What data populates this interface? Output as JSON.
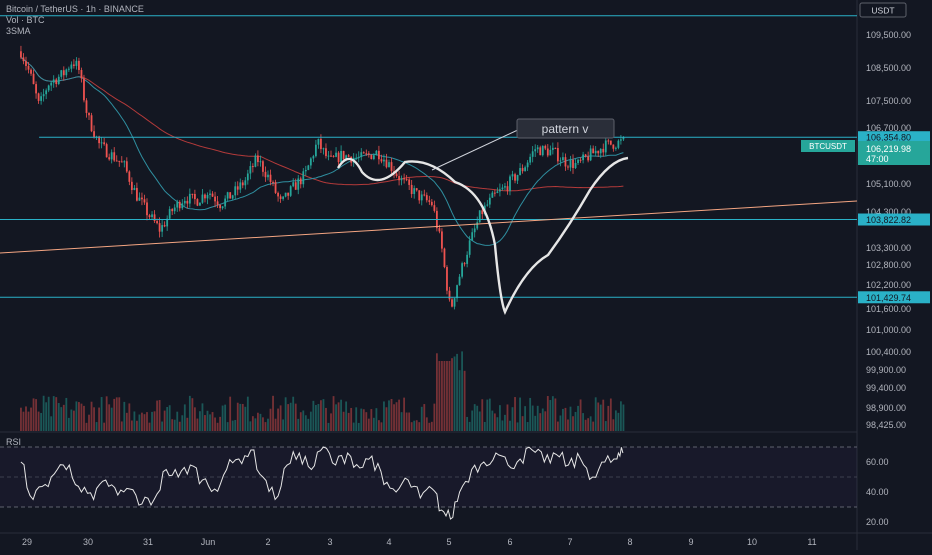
{
  "header": {
    "symbol_line": "Bitcoin / TetherUS · 1h · BINANCE",
    "volume_label": "Vol · BTC",
    "indicator_label": "3SMA",
    "rsi_label": "RSI"
  },
  "price_axis": {
    "currency": "USDT",
    "ticks": [
      "109,500.00",
      "108,500.00",
      "107,500.00",
      "106,700.00",
      "105,100.00",
      "104,300.00",
      "103,300.00",
      "102,800.00",
      "102,200.00",
      "101,600.00",
      "101,000.00",
      "100,400.00",
      "99,900.00",
      "99,400.00",
      "98,900.00",
      "98,425.00"
    ]
  },
  "time_axis": {
    "labels": [
      "29",
      "30",
      "31",
      "Jun",
      "2",
      "3",
      "4",
      "5",
      "6",
      "7",
      "8",
      "9",
      "10",
      "11"
    ]
  },
  "annotation": {
    "text": "pattern v"
  },
  "levels": {
    "top": "110,000",
    "upper": "106,354.80",
    "mid": "103,822.82",
    "low": "101,429.74"
  },
  "last_price": {
    "ticker": "BTCUSDT",
    "price": "106,219.98",
    "countdown": "47:00"
  },
  "rsi_axis": {
    "ticks": [
      "60.00",
      "40.00",
      "20.00"
    ]
  },
  "chart_data": [
    {
      "type": "candlestick",
      "title": "Bitcoin / TetherUS · 1h · BINANCE",
      "x_days": [
        "29",
        "30",
        "31",
        "Jun",
        "2",
        "3",
        "4",
        "5",
        "6",
        "7",
        "8",
        "9"
      ],
      "ylim": [
        98425,
        110200
      ],
      "close_path": [
        {
          "day": 28.9,
          "price": 109000
        },
        {
          "day": 29.05,
          "price": 108300
        },
        {
          "day": 29.2,
          "price": 107300
        },
        {
          "day": 29.35,
          "price": 108000
        },
        {
          "day": 29.6,
          "price": 108300
        },
        {
          "day": 29.75,
          "price": 108700
        },
        {
          "day": 29.85,
          "price": 108500
        },
        {
          "day": 30.0,
          "price": 107000
        },
        {
          "day": 30.2,
          "price": 106100
        },
        {
          "day": 30.4,
          "price": 105800
        },
        {
          "day": 30.6,
          "price": 105500
        },
        {
          "day": 30.8,
          "price": 104600
        },
        {
          "day": 31.0,
          "price": 104000
        },
        {
          "day": 31.2,
          "price": 103500
        },
        {
          "day": 31.4,
          "price": 104100
        },
        {
          "day": 31.6,
          "price": 104500
        },
        {
          "day": 31.8,
          "price": 104400
        },
        {
          "day": 32.0,
          "price": 104700
        },
        {
          "day": 32.2,
          "price": 104300
        },
        {
          "day": 32.4,
          "price": 104600
        },
        {
          "day": 32.6,
          "price": 105000
        },
        {
          "day": 32.8,
          "price": 105700
        },
        {
          "day": 33.0,
          "price": 105100
        },
        {
          "day": 33.2,
          "price": 104300
        },
        {
          "day": 33.4,
          "price": 104800
        },
        {
          "day": 33.6,
          "price": 105200
        },
        {
          "day": 33.8,
          "price": 106200
        },
        {
          "day": 34.0,
          "price": 105600
        },
        {
          "day": 34.2,
          "price": 105800
        },
        {
          "day": 34.5,
          "price": 105700
        },
        {
          "day": 34.8,
          "price": 105900
        },
        {
          "day": 35.0,
          "price": 105500
        },
        {
          "day": 35.2,
          "price": 105000
        },
        {
          "day": 35.5,
          "price": 104500
        },
        {
          "day": 35.7,
          "price": 104300
        },
        {
          "day": 35.85,
          "price": 103000
        },
        {
          "day": 36.0,
          "price": 101000
        },
        {
          "day": 36.1,
          "price": 101800
        },
        {
          "day": 36.3,
          "price": 103000
        },
        {
          "day": 36.5,
          "price": 104000
        },
        {
          "day": 36.7,
          "price": 104500
        },
        {
          "day": 36.9,
          "price": 104800
        },
        {
          "day": 37.2,
          "price": 105400
        },
        {
          "day": 37.4,
          "price": 106000
        },
        {
          "day": 37.7,
          "price": 105900
        },
        {
          "day": 37.9,
          "price": 105600
        },
        {
          "day": 38.1,
          "price": 105500
        },
        {
          "day": 38.3,
          "price": 105800
        },
        {
          "day": 38.55,
          "price": 106100
        },
        {
          "day": 38.85,
          "price": 106220
        }
      ],
      "horizontal_levels": [
        110000,
        106354.8,
        103822.82,
        101429.74
      ],
      "rsi": {
        "ylim": [
          20,
          80
        ],
        "band": [
          30,
          70
        ],
        "values": [
          {
            "day": 28.9,
            "v": 60
          },
          {
            "day": 29.1,
            "v": 35
          },
          {
            "day": 29.3,
            "v": 45
          },
          {
            "day": 29.5,
            "v": 55
          },
          {
            "day": 29.7,
            "v": 58
          },
          {
            "day": 29.9,
            "v": 40
          },
          {
            "day": 30.1,
            "v": 35
          },
          {
            "day": 30.3,
            "v": 48
          },
          {
            "day": 30.5,
            "v": 38
          },
          {
            "day": 30.7,
            "v": 42
          },
          {
            "day": 30.9,
            "v": 32
          },
          {
            "day": 31.1,
            "v": 35
          },
          {
            "day": 31.3,
            "v": 55
          },
          {
            "day": 31.5,
            "v": 50
          },
          {
            "day": 31.7,
            "v": 58
          },
          {
            "day": 31.9,
            "v": 48
          },
          {
            "day": 32.1,
            "v": 42
          },
          {
            "day": 32.3,
            "v": 55
          },
          {
            "day": 32.5,
            "v": 62
          },
          {
            "day": 32.7,
            "v": 68
          },
          {
            "day": 32.9,
            "v": 50
          },
          {
            "day": 33.1,
            "v": 35
          },
          {
            "day": 33.3,
            "v": 58
          },
          {
            "day": 33.5,
            "v": 66
          },
          {
            "day": 33.7,
            "v": 55
          },
          {
            "day": 33.9,
            "v": 70
          },
          {
            "day": 34.1,
            "v": 58
          },
          {
            "day": 34.3,
            "v": 66
          },
          {
            "day": 34.5,
            "v": 56
          },
          {
            "day": 34.7,
            "v": 64
          },
          {
            "day": 34.9,
            "v": 45
          },
          {
            "day": 35.1,
            "v": 40
          },
          {
            "day": 35.3,
            "v": 48
          },
          {
            "day": 35.5,
            "v": 36
          },
          {
            "day": 35.7,
            "v": 42
          },
          {
            "day": 35.85,
            "v": 28
          },
          {
            "day": 36.0,
            "v": 22
          },
          {
            "day": 36.15,
            "v": 40
          },
          {
            "day": 36.35,
            "v": 55
          },
          {
            "day": 36.55,
            "v": 60
          },
          {
            "day": 36.75,
            "v": 66
          },
          {
            "day": 36.95,
            "v": 58
          },
          {
            "day": 37.15,
            "v": 62
          },
          {
            "day": 37.35,
            "v": 68
          },
          {
            "day": 37.55,
            "v": 60
          },
          {
            "day": 37.75,
            "v": 65
          },
          {
            "day": 37.95,
            "v": 58
          },
          {
            "day": 38.15,
            "v": 62
          },
          {
            "day": 38.35,
            "v": 50
          },
          {
            "day": 38.55,
            "v": 60
          },
          {
            "day": 38.75,
            "v": 62
          },
          {
            "day": 38.85,
            "v": 66
          }
        ]
      }
    }
  ],
  "colors": {
    "background": "#131722",
    "up": "#26a69a",
    "down": "#ef5350",
    "level_line": "#2ab1c7",
    "trend_line": "#f4a582",
    "sma_slow": "#b33a3a",
    "sma_fast": "#2f8fa0",
    "pattern_curve": "#e6e6e6"
  }
}
